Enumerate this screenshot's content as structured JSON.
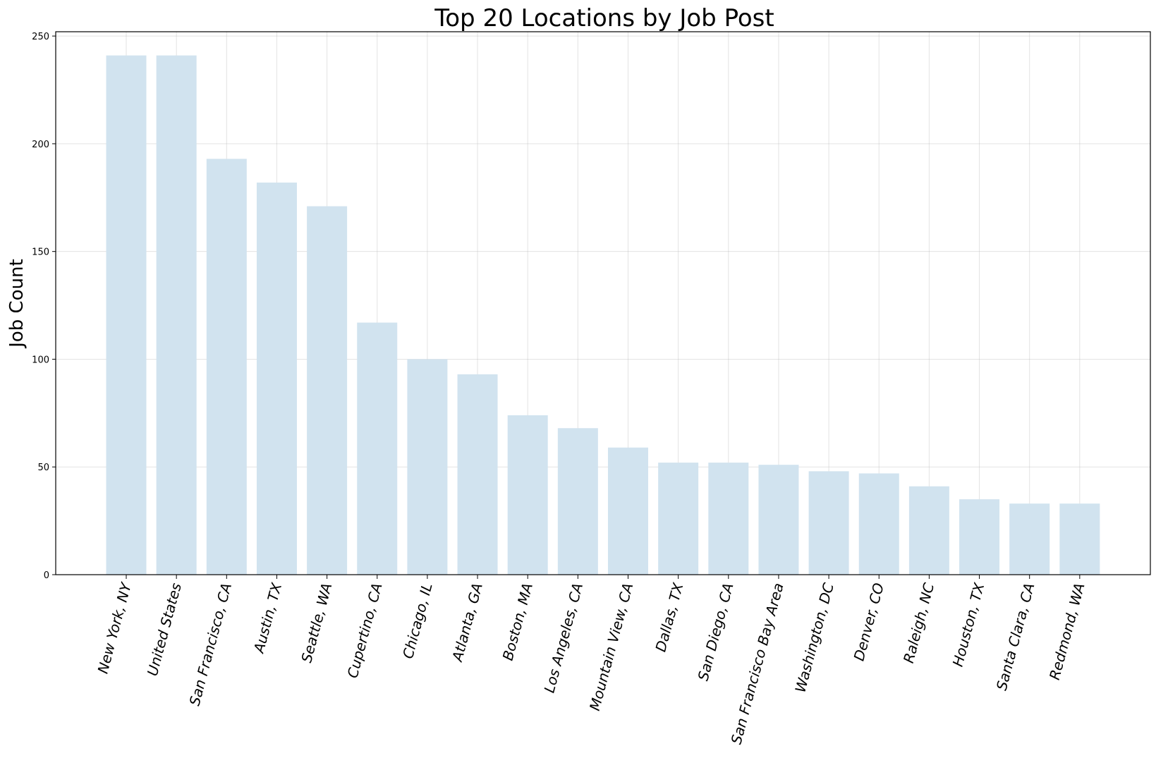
{
  "chart_data": {
    "type": "bar",
    "title": "Top 20 Locations by Job Post",
    "xlabel": "",
    "ylabel": "Job Count",
    "ylim": [
      0,
      252
    ],
    "yticks": [
      "0",
      "50",
      "100",
      "150",
      "200",
      "250"
    ],
    "grid": true,
    "bar_color": "#d1e3ef",
    "categories": [
      "New York, NY",
      "United States",
      "San Francisco, CA",
      "Austin, TX",
      "Seattle, WA",
      "Cupertino, CA",
      "Chicago, IL",
      "Atlanta, GA",
      "Boston, MA",
      "Los Angeles, CA",
      "Mountain View, CA",
      "Dallas, TX",
      "San Diego, CA",
      "San Francisco Bay Area",
      "Washington, DC",
      "Denver, CO",
      "Raleigh, NC",
      "Houston, TX",
      "Santa Clara, CA",
      "Redmond, WA"
    ],
    "values": [
      241,
      241,
      193,
      182,
      171,
      117,
      100,
      93,
      74,
      68,
      59,
      52,
      52,
      51,
      48,
      47,
      41,
      35,
      33,
      33
    ]
  }
}
